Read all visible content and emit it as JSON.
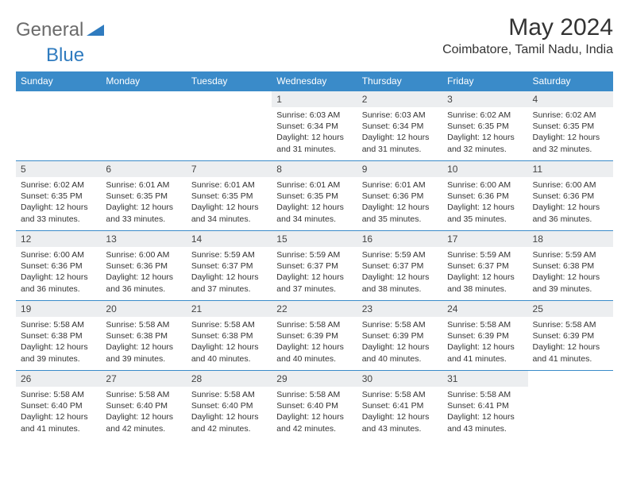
{
  "logo": {
    "text1": "General",
    "text2": "Blue",
    "text1_color": "#6b6b6b",
    "text2_color": "#2f7bbf",
    "icon_color": "#2f7bbf"
  },
  "title": "May 2024",
  "location": "Coimbatore, Tamil Nadu, India",
  "colors": {
    "header_bg": "#3a8bc9",
    "header_fg": "#ffffff",
    "daynum_bg": "#eceef0",
    "cell_border": "#3a8bc9",
    "page_bg": "#ffffff"
  },
  "typography": {
    "title_fontsize": 30,
    "location_fontsize": 16,
    "dayhead_fontsize": 12,
    "detail_fontsize": 10.5
  },
  "weekdays": [
    "Sunday",
    "Monday",
    "Tuesday",
    "Wednesday",
    "Thursday",
    "Friday",
    "Saturday"
  ],
  "labels": {
    "sunrise": "Sunrise:",
    "sunset": "Sunset:",
    "daylight": "Daylight:"
  },
  "weeks": [
    [
      null,
      null,
      null,
      {
        "day": "1",
        "sunrise": "6:03 AM",
        "sunset": "6:34 PM",
        "daylight": "12 hours and 31 minutes."
      },
      {
        "day": "2",
        "sunrise": "6:03 AM",
        "sunset": "6:34 PM",
        "daylight": "12 hours and 31 minutes."
      },
      {
        "day": "3",
        "sunrise": "6:02 AM",
        "sunset": "6:35 PM",
        "daylight": "12 hours and 32 minutes."
      },
      {
        "day": "4",
        "sunrise": "6:02 AM",
        "sunset": "6:35 PM",
        "daylight": "12 hours and 32 minutes."
      }
    ],
    [
      {
        "day": "5",
        "sunrise": "6:02 AM",
        "sunset": "6:35 PM",
        "daylight": "12 hours and 33 minutes."
      },
      {
        "day": "6",
        "sunrise": "6:01 AM",
        "sunset": "6:35 PM",
        "daylight": "12 hours and 33 minutes."
      },
      {
        "day": "7",
        "sunrise": "6:01 AM",
        "sunset": "6:35 PM",
        "daylight": "12 hours and 34 minutes."
      },
      {
        "day": "8",
        "sunrise": "6:01 AM",
        "sunset": "6:35 PM",
        "daylight": "12 hours and 34 minutes."
      },
      {
        "day": "9",
        "sunrise": "6:01 AM",
        "sunset": "6:36 PM",
        "daylight": "12 hours and 35 minutes."
      },
      {
        "day": "10",
        "sunrise": "6:00 AM",
        "sunset": "6:36 PM",
        "daylight": "12 hours and 35 minutes."
      },
      {
        "day": "11",
        "sunrise": "6:00 AM",
        "sunset": "6:36 PM",
        "daylight": "12 hours and 36 minutes."
      }
    ],
    [
      {
        "day": "12",
        "sunrise": "6:00 AM",
        "sunset": "6:36 PM",
        "daylight": "12 hours and 36 minutes."
      },
      {
        "day": "13",
        "sunrise": "6:00 AM",
        "sunset": "6:36 PM",
        "daylight": "12 hours and 36 minutes."
      },
      {
        "day": "14",
        "sunrise": "5:59 AM",
        "sunset": "6:37 PM",
        "daylight": "12 hours and 37 minutes."
      },
      {
        "day": "15",
        "sunrise": "5:59 AM",
        "sunset": "6:37 PM",
        "daylight": "12 hours and 37 minutes."
      },
      {
        "day": "16",
        "sunrise": "5:59 AM",
        "sunset": "6:37 PM",
        "daylight": "12 hours and 38 minutes."
      },
      {
        "day": "17",
        "sunrise": "5:59 AM",
        "sunset": "6:37 PM",
        "daylight": "12 hours and 38 minutes."
      },
      {
        "day": "18",
        "sunrise": "5:59 AM",
        "sunset": "6:38 PM",
        "daylight": "12 hours and 39 minutes."
      }
    ],
    [
      {
        "day": "19",
        "sunrise": "5:58 AM",
        "sunset": "6:38 PM",
        "daylight": "12 hours and 39 minutes."
      },
      {
        "day": "20",
        "sunrise": "5:58 AM",
        "sunset": "6:38 PM",
        "daylight": "12 hours and 39 minutes."
      },
      {
        "day": "21",
        "sunrise": "5:58 AM",
        "sunset": "6:38 PM",
        "daylight": "12 hours and 40 minutes."
      },
      {
        "day": "22",
        "sunrise": "5:58 AM",
        "sunset": "6:39 PM",
        "daylight": "12 hours and 40 minutes."
      },
      {
        "day": "23",
        "sunrise": "5:58 AM",
        "sunset": "6:39 PM",
        "daylight": "12 hours and 40 minutes."
      },
      {
        "day": "24",
        "sunrise": "5:58 AM",
        "sunset": "6:39 PM",
        "daylight": "12 hours and 41 minutes."
      },
      {
        "day": "25",
        "sunrise": "5:58 AM",
        "sunset": "6:39 PM",
        "daylight": "12 hours and 41 minutes."
      }
    ],
    [
      {
        "day": "26",
        "sunrise": "5:58 AM",
        "sunset": "6:40 PM",
        "daylight": "12 hours and 41 minutes."
      },
      {
        "day": "27",
        "sunrise": "5:58 AM",
        "sunset": "6:40 PM",
        "daylight": "12 hours and 42 minutes."
      },
      {
        "day": "28",
        "sunrise": "5:58 AM",
        "sunset": "6:40 PM",
        "daylight": "12 hours and 42 minutes."
      },
      {
        "day": "29",
        "sunrise": "5:58 AM",
        "sunset": "6:40 PM",
        "daylight": "12 hours and 42 minutes."
      },
      {
        "day": "30",
        "sunrise": "5:58 AM",
        "sunset": "6:41 PM",
        "daylight": "12 hours and 43 minutes."
      },
      {
        "day": "31",
        "sunrise": "5:58 AM",
        "sunset": "6:41 PM",
        "daylight": "12 hours and 43 minutes."
      },
      null
    ]
  ]
}
